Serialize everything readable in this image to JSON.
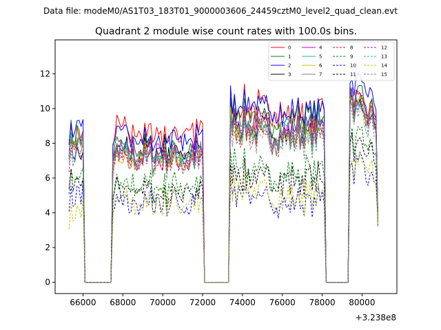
{
  "figure": {
    "suptitle": "Data file: modeM0/AS1T03_183T01_9000003606_24459cztM0_level2_quad_clean.evt"
  },
  "chart_data": {
    "type": "line",
    "title": "Quadrant 2 module wise count rates with 100.0s bins.",
    "xlabel": "",
    "ylabel": "",
    "offset_label": "+3.238e8",
    "xlim": [
      64600,
      81750
    ],
    "ylim": [
      -0.65,
      13.95
    ],
    "xticks": [
      66000,
      68000,
      70000,
      72000,
      74000,
      76000,
      78000,
      80000
    ],
    "xtick_labels": [
      "66000",
      "68000",
      "70000",
      "72000",
      "74000",
      "76000",
      "78000",
      "80000"
    ],
    "yticks": [
      0,
      2,
      4,
      6,
      8,
      10,
      12
    ],
    "ytick_labels": [
      "0",
      "2",
      "4",
      "6",
      "8",
      "10",
      "12"
    ],
    "legend_location": "upper right",
    "gaps": [
      [
        66100,
        67400
      ],
      [
        72150,
        73300
      ],
      [
        78250,
        79300
      ]
    ],
    "segment_ends": [
      [
        65300,
        66000
      ],
      [
        67500,
        72050
      ],
      [
        73400,
        78150
      ],
      [
        79400,
        80800
      ]
    ],
    "series": [
      {
        "name": "0",
        "color": "#ff0000",
        "style": "solid",
        "levels": [
          8.4,
          8.6,
          10.6,
          10.0
        ]
      },
      {
        "name": "1",
        "color": "#008000",
        "style": "solid",
        "levels": [
          8.3,
          7.6,
          10.0,
          10.2
        ]
      },
      {
        "name": "2",
        "color": "#0000ff",
        "style": "solid",
        "levels": [
          9.0,
          8.3,
          10.5,
          11.0
        ]
      },
      {
        "name": "3",
        "color": "#000000",
        "style": "solid",
        "levels": [
          7.6,
          7.5,
          9.3,
          9.6
        ]
      },
      {
        "name": "4",
        "color": "#bf00bf",
        "style": "solid",
        "levels": [
          8.0,
          7.5,
          9.6,
          9.9
        ]
      },
      {
        "name": "5",
        "color": "#20b2aa",
        "style": "solid",
        "levels": [
          8.2,
          7.3,
          9.4,
          9.9
        ]
      },
      {
        "name": "6",
        "color": "#bfbf00",
        "style": "solid",
        "levels": [
          7.8,
          7.1,
          9.2,
          9.6
        ]
      },
      {
        "name": "7",
        "color": "#808080",
        "style": "solid",
        "levels": [
          7.9,
          7.2,
          9.1,
          9.7
        ]
      },
      {
        "name": "8",
        "color": "#ff0000",
        "style": "dashed",
        "levels": [
          7.6,
          7.0,
          8.9,
          9.7
        ]
      },
      {
        "name": "9",
        "color": "#008000",
        "style": "dashed",
        "levels": [
          6.2,
          5.5,
          7.0,
          7.9
        ]
      },
      {
        "name": "10",
        "color": "#0000ff",
        "style": "dashed",
        "levels": [
          5.1,
          4.5,
          5.4,
          6.3
        ]
      },
      {
        "name": "11",
        "color": "#000000",
        "style": "dashed",
        "levels": [
          5.9,
          5.2,
          6.5,
          7.5
        ]
      },
      {
        "name": "12",
        "color": "#bf00bf",
        "style": "dashed",
        "levels": [
          7.4,
          7.0,
          9.3,
          9.4
        ]
      },
      {
        "name": "13",
        "color": "#20b2aa",
        "style": "dashed",
        "levels": [
          7.7,
          7.2,
          9.0,
          9.4
        ]
      },
      {
        "name": "14",
        "color": "#bfbf00",
        "style": "dashed",
        "levels": [
          4.2,
          4.5,
          5.6,
          6.4
        ]
      },
      {
        "name": "15",
        "color": "#808080",
        "style": "dashed",
        "levels": [
          7.3,
          6.9,
          8.8,
          9.2
        ]
      }
    ]
  }
}
